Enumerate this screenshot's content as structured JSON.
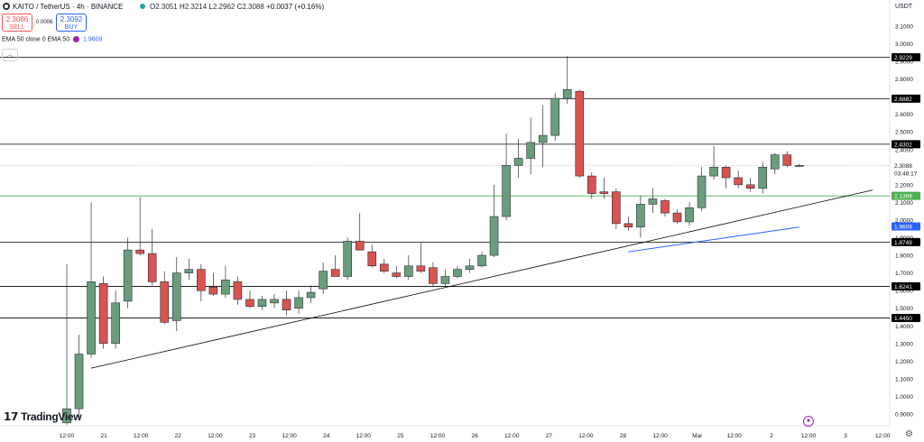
{
  "header": {
    "symbol": "KAITO / TetherUS · 4h · BINANCE",
    "ohlc": {
      "o_label": "O",
      "o": "2.3051",
      "h_label": "H",
      "h": "2.3214",
      "l_label": "L",
      "l": "2.2962",
      "c_label": "C",
      "c": "2.3088",
      "change": "+0.0037 (+0.16%)"
    },
    "sell": {
      "price": "2.3086",
      "label": "SELL"
    },
    "buy": {
      "price": "2.3092",
      "label": "BUY"
    },
    "spread": "0.0006",
    "indicator": {
      "label": "EMA 50 close 0 EMA 50",
      "value": "1.9609"
    },
    "collapse_icon": "chevron-up-icon"
  },
  "branding": {
    "logo": "TradingView",
    "logo_icon": "tv-logo-icon"
  },
  "colors": {
    "up": "#6a9d7c",
    "down": "#d9534f",
    "ema": "#2962ff",
    "line": "#000000",
    "green_level": "#4caf50"
  },
  "chart_data": {
    "type": "candlestick",
    "currency": "USDT",
    "ylim": [
      0.84,
      3.2
    ],
    "y_ticks": [
      "0.9000",
      "1.0000",
      "1.1000",
      "1.2000",
      "1.3000",
      "1.4000",
      "1.5000",
      "1.6000",
      "1.7000",
      "1.8000",
      "1.9000",
      "2.0000",
      "2.1000",
      "2.2000",
      "2.3000",
      "2.4000",
      "2.5000",
      "2.6000",
      "2.7000",
      "2.8000",
      "2.9000",
      "3.0000",
      "3.1000"
    ],
    "x_labels": [
      "12:00",
      "21",
      "12:00",
      "22",
      "12:00",
      "23",
      "12:00",
      "24",
      "12:00",
      "25",
      "12:00",
      "26",
      "12:00",
      "27",
      "12:00",
      "28",
      "12:00",
      "Mar",
      "12:00",
      "2",
      "12:00",
      "3",
      "12:00"
    ],
    "candles": [
      {
        "o": 0.85,
        "h": 1.75,
        "l": 0.84,
        "c": 0.93
      },
      {
        "o": 0.93,
        "h": 1.35,
        "l": 0.88,
        "c": 1.24
      },
      {
        "o": 1.24,
        "h": 2.1,
        "l": 1.22,
        "c": 1.65
      },
      {
        "o": 1.64,
        "h": 1.68,
        "l": 1.27,
        "c": 1.3
      },
      {
        "o": 1.3,
        "h": 1.6,
        "l": 1.27,
        "c": 1.53
      },
      {
        "o": 1.54,
        "h": 1.9,
        "l": 1.5,
        "c": 1.83
      },
      {
        "o": 1.83,
        "h": 2.13,
        "l": 1.8,
        "c": 1.81
      },
      {
        "o": 1.81,
        "h": 1.95,
        "l": 1.63,
        "c": 1.65
      },
      {
        "o": 1.65,
        "h": 1.71,
        "l": 1.41,
        "c": 1.42
      },
      {
        "o": 1.43,
        "h": 1.79,
        "l": 1.37,
        "c": 1.7
      },
      {
        "o": 1.7,
        "h": 1.78,
        "l": 1.66,
        "c": 1.72
      },
      {
        "o": 1.72,
        "h": 1.75,
        "l": 1.54,
        "c": 1.6
      },
      {
        "o": 1.62,
        "h": 1.7,
        "l": 1.57,
        "c": 1.58
      },
      {
        "o": 1.58,
        "h": 1.74,
        "l": 1.56,
        "c": 1.66
      },
      {
        "o": 1.65,
        "h": 1.68,
        "l": 1.52,
        "c": 1.55
      },
      {
        "o": 1.55,
        "h": 1.6,
        "l": 1.5,
        "c": 1.51
      },
      {
        "o": 1.51,
        "h": 1.57,
        "l": 1.49,
        "c": 1.55
      },
      {
        "o": 1.53,
        "h": 1.58,
        "l": 1.5,
        "c": 1.55
      },
      {
        "o": 1.55,
        "h": 1.6,
        "l": 1.46,
        "c": 1.49
      },
      {
        "o": 1.5,
        "h": 1.6,
        "l": 1.47,
        "c": 1.56
      },
      {
        "o": 1.56,
        "h": 1.63,
        "l": 1.53,
        "c": 1.59
      },
      {
        "o": 1.61,
        "h": 1.76,
        "l": 1.58,
        "c": 1.71
      },
      {
        "o": 1.72,
        "h": 1.8,
        "l": 1.7,
        "c": 1.68
      },
      {
        "o": 1.68,
        "h": 1.9,
        "l": 1.66,
        "c": 1.88
      },
      {
        "o": 1.88,
        "h": 2.04,
        "l": 1.85,
        "c": 1.83
      },
      {
        "o": 1.82,
        "h": 1.86,
        "l": 1.73,
        "c": 1.74
      },
      {
        "o": 1.75,
        "h": 1.78,
        "l": 1.7,
        "c": 1.71
      },
      {
        "o": 1.7,
        "h": 1.74,
        "l": 1.67,
        "c": 1.68
      },
      {
        "o": 1.68,
        "h": 1.8,
        "l": 1.66,
        "c": 1.74
      },
      {
        "o": 1.74,
        "h": 1.87,
        "l": 1.7,
        "c": 1.71
      },
      {
        "o": 1.73,
        "h": 1.76,
        "l": 1.62,
        "c": 1.64
      },
      {
        "o": 1.64,
        "h": 1.72,
        "l": 1.62,
        "c": 1.68
      },
      {
        "o": 1.68,
        "h": 1.74,
        "l": 1.67,
        "c": 1.72
      },
      {
        "o": 1.72,
        "h": 1.78,
        "l": 1.7,
        "c": 1.74
      },
      {
        "o": 1.74,
        "h": 1.82,
        "l": 1.73,
        "c": 1.8
      },
      {
        "o": 1.8,
        "h": 2.2,
        "l": 1.79,
        "c": 2.02
      },
      {
        "o": 2.02,
        "h": 2.49,
        "l": 2.0,
        "c": 2.31
      },
      {
        "o": 2.31,
        "h": 2.46,
        "l": 2.24,
        "c": 2.35
      },
      {
        "o": 2.35,
        "h": 2.58,
        "l": 2.26,
        "c": 2.44
      },
      {
        "o": 2.44,
        "h": 2.65,
        "l": 2.3,
        "c": 2.48
      },
      {
        "o": 2.48,
        "h": 2.72,
        "l": 2.45,
        "c": 2.69
      },
      {
        "o": 2.69,
        "h": 2.93,
        "l": 2.66,
        "c": 2.74
      },
      {
        "o": 2.73,
        "h": 2.74,
        "l": 2.24,
        "c": 2.25
      },
      {
        "o": 2.25,
        "h": 2.27,
        "l": 2.12,
        "c": 2.15
      },
      {
        "o": 2.16,
        "h": 2.24,
        "l": 2.12,
        "c": 2.15
      },
      {
        "o": 2.16,
        "h": 2.18,
        "l": 1.95,
        "c": 1.98
      },
      {
        "o": 1.98,
        "h": 2.02,
        "l": 1.94,
        "c": 1.96
      },
      {
        "o": 1.96,
        "h": 2.14,
        "l": 1.9,
        "c": 2.09
      },
      {
        "o": 2.09,
        "h": 2.18,
        "l": 2.04,
        "c": 2.12
      },
      {
        "o": 2.11,
        "h": 2.12,
        "l": 2.02,
        "c": 2.04
      },
      {
        "o": 2.04,
        "h": 2.06,
        "l": 1.98,
        "c": 1.99
      },
      {
        "o": 1.99,
        "h": 2.1,
        "l": 1.97,
        "c": 2.07
      },
      {
        "o": 2.07,
        "h": 2.3,
        "l": 2.05,
        "c": 2.25
      },
      {
        "o": 2.25,
        "h": 2.42,
        "l": 2.23,
        "c": 2.3
      },
      {
        "o": 2.3,
        "h": 2.31,
        "l": 2.18,
        "c": 2.24
      },
      {
        "o": 2.24,
        "h": 2.28,
        "l": 2.18,
        "c": 2.2
      },
      {
        "o": 2.2,
        "h": 2.24,
        "l": 2.16,
        "c": 2.18
      },
      {
        "o": 2.18,
        "h": 2.33,
        "l": 2.15,
        "c": 2.3
      },
      {
        "o": 2.29,
        "h": 2.38,
        "l": 2.26,
        "c": 2.37
      },
      {
        "o": 2.37,
        "h": 2.39,
        "l": 2.3,
        "c": 2.31
      },
      {
        "o": 2.31,
        "h": 2.32,
        "l": 2.3,
        "c": 2.31
      }
    ],
    "ema_values": [
      1.82,
      1.83,
      1.84,
      1.85,
      1.86,
      1.87,
      1.88,
      1.89,
      1.9,
      1.91,
      1.92,
      1.93,
      1.94,
      1.95,
      1.96
    ],
    "ema_label": "1.9609",
    "levels": [
      {
        "value": 2.9229,
        "label": "2.9229"
      },
      {
        "value": 2.6882,
        "label": "2.6882"
      },
      {
        "value": 2.4302,
        "label": "2.4302"
      },
      {
        "value": 1.8749,
        "label": "1.8749"
      },
      {
        "value": 1.6241,
        "label": "1.6241"
      },
      {
        "value": 1.445,
        "label": "1.4450"
      }
    ],
    "green_level": {
      "value": 2.1369,
      "label": "2.1369"
    },
    "current_price": {
      "value": 2.3088,
      "label": "2.3088",
      "countdown": "03:48:17"
    },
    "trendline": {
      "start": {
        "candle": 2,
        "price": 1.16
      },
      "end": {
        "candle": 66,
        "price": 2.17
      }
    }
  }
}
